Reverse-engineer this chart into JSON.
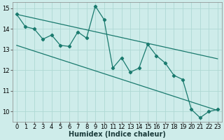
{
  "xlabel": "Humidex (Indice chaleur)",
  "bg_color": "#ceecea",
  "grid_color": "#aed8d4",
  "line_color": "#1a7a6e",
  "x_data": [
    0,
    1,
    2,
    3,
    4,
    5,
    6,
    7,
    8,
    9,
    10,
    11,
    12,
    13,
    14,
    15,
    16,
    17,
    18,
    19,
    20,
    21,
    22,
    23
  ],
  "y_data": [
    14.7,
    14.1,
    14.0,
    13.5,
    13.7,
    13.2,
    13.15,
    13.85,
    13.55,
    15.1,
    14.45,
    12.1,
    12.6,
    11.9,
    12.1,
    13.25,
    12.7,
    12.35,
    11.75,
    11.55,
    10.1,
    9.7,
    10.0,
    10.1
  ],
  "upper_line": [
    [
      0,
      14.7
    ],
    [
      23,
      12.55
    ]
  ],
  "lower_line": [
    [
      0,
      13.2
    ],
    [
      23,
      10.05
    ]
  ],
  "xlim": [
    -0.5,
    23.5
  ],
  "ylim": [
    9.5,
    15.3
  ],
  "yticks": [
    10,
    11,
    12,
    13,
    14,
    15
  ],
  "xticks": [
    0,
    1,
    2,
    3,
    4,
    5,
    6,
    7,
    8,
    9,
    10,
    11,
    12,
    13,
    14,
    15,
    16,
    17,
    18,
    19,
    20,
    21,
    22,
    23
  ],
  "xlabel_fontsize": 7,
  "tick_fontsize": 6
}
